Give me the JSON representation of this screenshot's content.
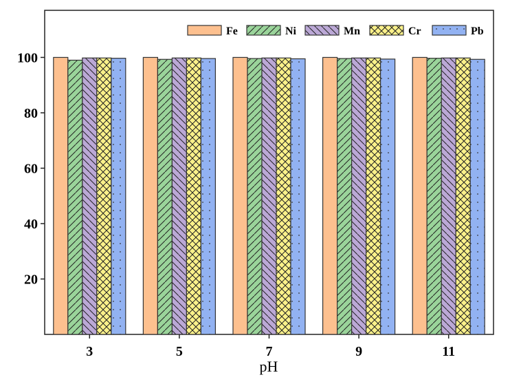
{
  "chart_data": {
    "type": "bar",
    "title": "",
    "xlabel": "pH",
    "ylabel": "",
    "categories": [
      "3",
      "5",
      "7",
      "9",
      "11"
    ],
    "ylim": [
      0,
      117
    ],
    "yticks": [
      20,
      40,
      60,
      80,
      100
    ],
    "legend_position": "top-right",
    "series": [
      {
        "name": "Fe",
        "color": "#FDC08F",
        "pattern": "none",
        "values": [
          100,
          100,
          100,
          100,
          100
        ]
      },
      {
        "name": "Ni",
        "color": "#9AD49A",
        "pattern": "forward-diagonal",
        "values": [
          99.0,
          99.3,
          99.6,
          99.6,
          99.7
        ]
      },
      {
        "name": "Mn",
        "color": "#BBA8D6",
        "pattern": "back-diagonal",
        "values": [
          99.8,
          99.8,
          99.8,
          99.8,
          99.8
        ]
      },
      {
        "name": "Cr",
        "color": "#FBF18A",
        "pattern": "crosshatch",
        "values": [
          99.8,
          99.8,
          99.8,
          99.8,
          99.8
        ]
      },
      {
        "name": "Pb",
        "color": "#92B2F2",
        "pattern": "dots",
        "values": [
          99.7,
          99.6,
          99.5,
          99.4,
          99.3
        ]
      }
    ]
  }
}
